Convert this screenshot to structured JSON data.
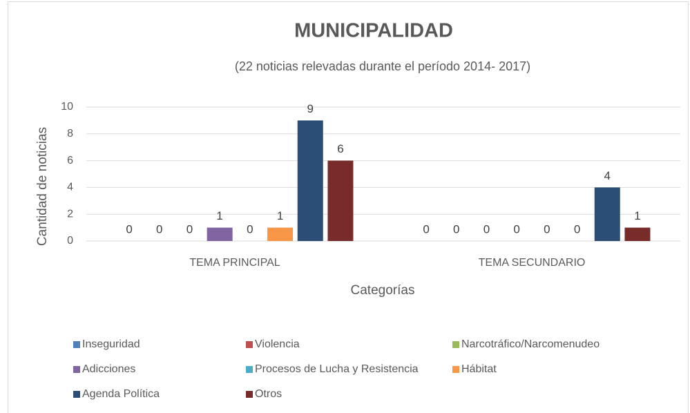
{
  "chart_data": {
    "type": "bar",
    "title": "MUNICIPALIDAD",
    "subtitle": "(22 noticias relevadas durante el período 2014- 2017)",
    "x_label": "Categorías",
    "y_label": "Cantidad de noticias",
    "categories": [
      "TEMA PRINCIPAL",
      "TEMA SECUNDARIO"
    ],
    "series": [
      {
        "name": "Inseguridad",
        "color": "#4f81bd",
        "values": [
          0,
          0
        ]
      },
      {
        "name": "Violencia",
        "color": "#c0504d",
        "values": [
          0,
          0
        ]
      },
      {
        "name": "Narcotráfico/Narcomenudeo",
        "color": "#9bbb59",
        "values": [
          0,
          0
        ]
      },
      {
        "name": "Adicciones",
        "color": "#8064a2",
        "values": [
          1,
          0
        ]
      },
      {
        "name": "Procesos de Lucha y Resistencia",
        "color": "#4bacc6",
        "values": [
          0,
          0
        ]
      },
      {
        "name": "Hábitat",
        "color": "#f79646",
        "values": [
          1,
          0
        ]
      },
      {
        "name": "Agenda Política",
        "color": "#2c4d75",
        "values": [
          9,
          4
        ]
      },
      {
        "name": "Otros",
        "color": "#772c2a",
        "values": [
          6,
          1
        ]
      }
    ],
    "ylim": [
      0,
      10
    ],
    "yticks": [
      0,
      2,
      4,
      6,
      8,
      10
    ],
    "grid": true,
    "legend": "bottom"
  }
}
